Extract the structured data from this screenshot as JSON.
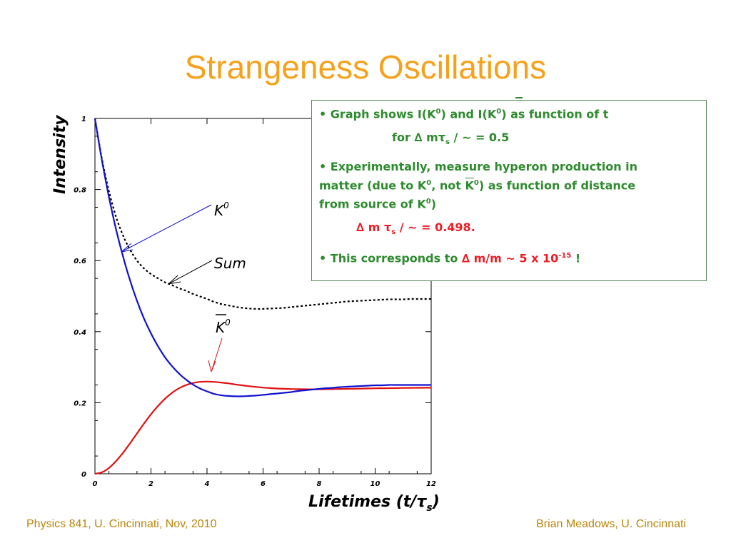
{
  "slide": {
    "title": "Strangeness Oscillations",
    "footer_left": "Physics 841, U. Cincinnati, Nov, 2010",
    "footer_right": "Brian Meadows, U. Cincinnati"
  },
  "colors": {
    "title": "#f6a11a",
    "footer": "#b8860b",
    "box_text_green": "#2e8b2e",
    "box_text_red": "#ee1c25",
    "k0_curve": "#1010d0",
    "k0bar_curve": "#e01010",
    "sum_curve": "#000000"
  },
  "infobox": {
    "b1_pre": "• Graph shows I(K",
    "b1_mid": ") and I(K",
    "b1_post": ") as function of t",
    "sup0": "0",
    "for_pre": "for ∆ m",
    "tau": "τ",
    "sub_s": "s",
    "slash_hbar": " / ~ = 0.5",
    "b2_l1": "• Experimentally, measure hyperon production in",
    "b2_l2_pre": "matter (due to K",
    "b2_l2_mid": ", not ",
    "b2_l2_k": "K",
    "b2_l2_post": ") as function of distance",
    "b2_l3_pre": "from source of K",
    "b2_l3_post": ")",
    "meas_pre": "∆ m ",
    "meas_post": " / ~ = 0.498.",
    "b3_pre": "• This corresponds to ",
    "b3_red": "∆ m/m ~ 5 x 10",
    "b3_exp": "-15",
    "b3_post": " !"
  },
  "chart_data": {
    "type": "line",
    "title": "",
    "xlabel": "Lifetimes (t/τs)",
    "ylabel": "Intensity",
    "xlim": [
      0,
      12
    ],
    "ylim": [
      0,
      1
    ],
    "x_ticks": [
      "0",
      "2",
      "4",
      "6",
      "8",
      "10",
      "12"
    ],
    "y_ticks": [
      "0",
      "0.2",
      "0.4",
      "0.6",
      "0.8",
      "1"
    ],
    "annotations": [
      {
        "text": "K0",
        "target_series": "K0",
        "at_x": 0.95
      },
      {
        "text": "Sum",
        "target_series": "Sum",
        "at_x": 2.7
      },
      {
        "text": "K0bar",
        "target_series": "K0bar",
        "at_x": 4.4
      }
    ],
    "x": [
      0,
      0.25,
      0.5,
      0.75,
      1,
      1.25,
      1.5,
      1.75,
      2,
      2.25,
      2.5,
      2.75,
      3,
      3.25,
      3.5,
      3.75,
      4,
      4.25,
      4.5,
      4.75,
      5,
      5.25,
      5.5,
      5.75,
      6,
      6.25,
      6.5,
      6.75,
      7,
      7.25,
      7.5,
      7.75,
      8,
      8.25,
      8.5,
      8.75,
      9,
      9.25,
      9.5,
      9.75,
      10,
      10.25,
      10.5,
      10.75,
      11,
      11.25,
      11.5,
      11.75,
      12
    ],
    "series": [
      {
        "name": "K0",
        "color": "#1010d0",
        "dash": false,
        "values": [
          1,
          0.882,
          0.779,
          0.689,
          0.612,
          0.545,
          0.487,
          0.437,
          0.395,
          0.359,
          0.328,
          0.303,
          0.282,
          0.265,
          0.251,
          0.24,
          0.232,
          0.225,
          0.221,
          0.219,
          0.218,
          0.218,
          0.219,
          0.22,
          0.222,
          0.224,
          0.226,
          0.228,
          0.23,
          0.233,
          0.235,
          0.237,
          0.239,
          0.241,
          0.242,
          0.244,
          0.245,
          0.246,
          0.247,
          0.248,
          0.249,
          0.249,
          0.25,
          0.25,
          0.25,
          0.25,
          0.25,
          0.25,
          0.25
        ]
      },
      {
        "name": "K0bar",
        "color": "#e01010",
        "dash": false,
        "values": [
          0,
          0.0042,
          0.0165,
          0.0353,
          0.0589,
          0.0856,
          0.1135,
          0.1413,
          0.1674,
          0.1908,
          0.2111,
          0.2277,
          0.2405,
          0.2496,
          0.2555,
          0.2587,
          0.2595,
          0.2587,
          0.2568,
          0.2546,
          0.2515,
          0.2489,
          0.2466,
          0.2445,
          0.2426,
          0.2412,
          0.2399,
          0.2392,
          0.2385,
          0.2381,
          0.2379,
          0.2378,
          0.2379,
          0.2381,
          0.2384,
          0.2387,
          0.239,
          0.2394,
          0.2398,
          0.2401,
          0.2405,
          0.2408,
          0.241,
          0.2412,
          0.2415,
          0.2417,
          0.242,
          0.2421,
          0.2422
        ]
      },
      {
        "name": "Sum",
        "color": "#000000",
        "dash": true,
        "values": [
          1,
          0.886,
          0.795,
          0.724,
          0.671,
          0.631,
          0.6,
          0.578,
          0.562,
          0.55,
          0.539,
          0.531,
          0.522,
          0.515,
          0.506,
          0.499,
          0.492,
          0.484,
          0.478,
          0.474,
          0.47,
          0.467,
          0.465,
          0.464,
          0.464,
          0.465,
          0.466,
          0.467,
          0.469,
          0.471,
          0.473,
          0.475,
          0.477,
          0.479,
          0.481,
          0.483,
          0.485,
          0.486,
          0.487,
          0.488,
          0.489,
          0.49,
          0.491,
          0.491,
          0.491,
          0.492,
          0.492,
          0.492,
          0.492
        ]
      }
    ]
  }
}
